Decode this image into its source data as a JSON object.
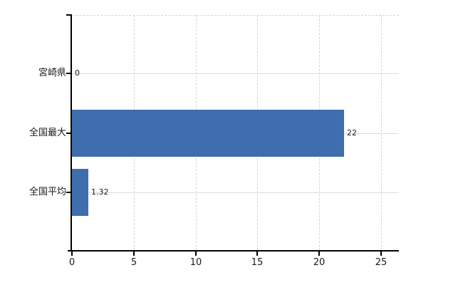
{
  "chart_data": {
    "type": "bar",
    "orientation": "horizontal",
    "title": "",
    "xlabel": "",
    "ylabel": "",
    "categories": [
      "宮崎県",
      "全国最大",
      "全国平均"
    ],
    "values": [
      0,
      22,
      1.32
    ],
    "value_labels": [
      "0",
      "22",
      "1.32"
    ],
    "xlim": [
      0,
      25
    ],
    "x_ticks": [
      0,
      5,
      10,
      15,
      20,
      25
    ],
    "x_tick_labels": [
      "0",
      "5",
      "10",
      "15",
      "20",
      "25"
    ],
    "grid": "vertical-dashed, row-lines, top-line",
    "legend": "none",
    "colors": {
      "bar": "#3E6EAE",
      "axis": "#000000",
      "gridline": "#d4d4d4",
      "row_line": "#dcdcdc",
      "text": "#1a1a1a",
      "background": "#ffffff"
    }
  }
}
